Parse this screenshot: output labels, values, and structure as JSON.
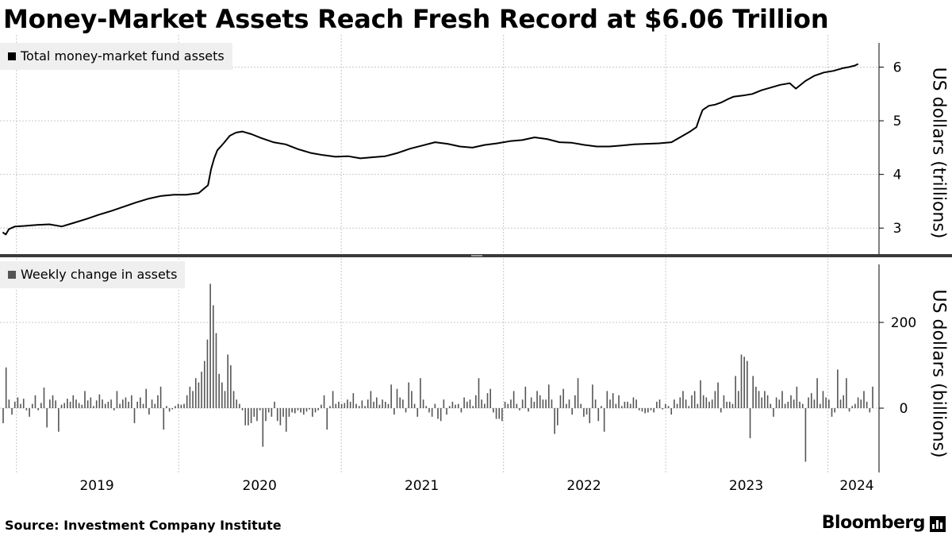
{
  "title": "Money-Market Assets Reach Fresh Record at $6.06 Trillion",
  "source": "Source: Investment Company Institute",
  "brand": "Bloomberg",
  "brand_icon": "bloomberg-chart-icon",
  "colors": {
    "line": "#000000",
    "bar": "#555555",
    "grid": "#c8c8c8",
    "legend_bg": "#efefef"
  },
  "chart_data": [
    {
      "type": "line",
      "legend": "Total money-market fund assets",
      "ylabel": "US dollars (trillions)",
      "yticks": [
        "3",
        "4",
        "5",
        "6"
      ],
      "ylim": [
        2.5,
        6.6
      ],
      "xticks": [
        "2019",
        "2020",
        "2021",
        "2022",
        "2023",
        "2024"
      ],
      "x_unit": "date",
      "grid": true,
      "series": [
        {
          "points": [
            [
              "2018-12-01",
              2.92
            ],
            [
              "2018-12-08",
              2.88
            ],
            [
              "2018-12-15",
              2.98
            ],
            [
              "2018-12-29",
              3.03
            ],
            [
              "2019-01-19",
              3.04
            ],
            [
              "2019-02-16",
              3.06
            ],
            [
              "2019-03-16",
              3.07
            ],
            [
              "2019-04-13",
              3.03
            ],
            [
              "2019-05-11",
              3.1
            ],
            [
              "2019-06-08",
              3.17
            ],
            [
              "2019-07-06",
              3.25
            ],
            [
              "2019-08-03",
              3.32
            ],
            [
              "2019-08-31",
              3.4
            ],
            [
              "2019-09-28",
              3.48
            ],
            [
              "2019-10-26",
              3.55
            ],
            [
              "2019-11-23",
              3.6
            ],
            [
              "2019-12-21",
              3.62
            ],
            [
              "2020-01-18",
              3.62
            ],
            [
              "2020-02-15",
              3.65
            ],
            [
              "2020-03-07",
              3.8
            ],
            [
              "2020-03-14",
              4.1
            ],
            [
              "2020-03-21",
              4.3
            ],
            [
              "2020-03-28",
              4.45
            ],
            [
              "2020-04-11",
              4.58
            ],
            [
              "2020-04-25",
              4.72
            ],
            [
              "2020-05-09",
              4.78
            ],
            [
              "2020-05-23",
              4.8
            ],
            [
              "2020-06-13",
              4.75
            ],
            [
              "2020-07-04",
              4.68
            ],
            [
              "2020-08-01",
              4.6
            ],
            [
              "2020-08-29",
              4.56
            ],
            [
              "2020-09-26",
              4.47
            ],
            [
              "2020-10-24",
              4.4
            ],
            [
              "2020-11-21",
              4.36
            ],
            [
              "2020-12-19",
              4.33
            ],
            [
              "2021-01-16",
              4.34
            ],
            [
              "2021-02-13",
              4.3
            ],
            [
              "2021-03-13",
              4.32
            ],
            [
              "2021-04-10",
              4.34
            ],
            [
              "2021-05-08",
              4.4
            ],
            [
              "2021-06-05",
              4.48
            ],
            [
              "2021-07-03",
              4.54
            ],
            [
              "2021-07-31",
              4.6
            ],
            [
              "2021-08-28",
              4.57
            ],
            [
              "2021-09-25",
              4.52
            ],
            [
              "2021-10-23",
              4.5
            ],
            [
              "2021-11-20",
              4.55
            ],
            [
              "2021-12-18",
              4.58
            ],
            [
              "2022-01-15",
              4.62
            ],
            [
              "2022-02-12",
              4.64
            ],
            [
              "2022-03-12",
              4.69
            ],
            [
              "2022-04-09",
              4.66
            ],
            [
              "2022-05-07",
              4.6
            ],
            [
              "2022-06-04",
              4.59
            ],
            [
              "2022-07-02",
              4.55
            ],
            [
              "2022-07-30",
              4.52
            ],
            [
              "2022-08-27",
              4.52
            ],
            [
              "2022-09-24",
              4.54
            ],
            [
              "2022-10-22",
              4.56
            ],
            [
              "2022-11-19",
              4.57
            ],
            [
              "2022-12-17",
              4.58
            ],
            [
              "2023-01-14",
              4.6
            ],
            [
              "2023-02-04",
              4.7
            ],
            [
              "2023-02-25",
              4.8
            ],
            [
              "2023-03-11",
              4.88
            ],
            [
              "2023-03-18",
              5.05
            ],
            [
              "2023-03-25",
              5.2
            ],
            [
              "2023-04-08",
              5.28
            ],
            [
              "2023-04-22",
              5.3
            ],
            [
              "2023-05-06",
              5.34
            ],
            [
              "2023-05-20",
              5.4
            ],
            [
              "2023-06-03",
              5.45
            ],
            [
              "2023-06-24",
              5.47
            ],
            [
              "2023-07-15",
              5.5
            ],
            [
              "2023-08-05",
              5.57
            ],
            [
              "2023-08-26",
              5.62
            ],
            [
              "2023-09-16",
              5.67
            ],
            [
              "2023-10-07",
              5.7
            ],
            [
              "2023-10-21",
              5.6
            ],
            [
              "2023-11-11",
              5.74
            ],
            [
              "2023-12-02",
              5.84
            ],
            [
              "2023-12-23",
              5.9
            ],
            [
              "2024-01-13",
              5.93
            ],
            [
              "2024-02-03",
              5.98
            ],
            [
              "2024-02-17",
              6.0
            ],
            [
              "2024-03-02",
              6.03
            ],
            [
              "2024-03-09",
              6.06
            ]
          ]
        }
      ]
    },
    {
      "type": "bar",
      "legend": "Weekly change in assets",
      "ylabel": "US dollars (billions)",
      "yticks": [
        "0",
        "200"
      ],
      "ylim": [
        -150,
        350
      ],
      "xticks": [
        "2019",
        "2020",
        "2021",
        "2022",
        "2023",
        "2024"
      ],
      "x_unit": "date",
      "grid": true,
      "series": [
        {
          "values": [
            -35,
            95,
            20,
            -15,
            15,
            25,
            10,
            22,
            -5,
            -20,
            10,
            30,
            -5,
            12,
            48,
            -45,
            20,
            30,
            18,
            -55,
            8,
            12,
            22,
            15,
            30,
            20,
            12,
            8,
            40,
            18,
            25,
            5,
            18,
            32,
            20,
            10,
            15,
            20,
            -5,
            40,
            10,
            20,
            25,
            15,
            30,
            -35,
            15,
            25,
            10,
            45,
            -15,
            20,
            10,
            30,
            50,
            -50,
            5,
            -8,
            -3,
            5,
            10,
            8,
            10,
            30,
            50,
            40,
            70,
            60,
            85,
            110,
            160,
            290,
            240,
            175,
            80,
            60,
            40,
            125,
            100,
            40,
            20,
            10,
            -5,
            -40,
            -40,
            -35,
            -20,
            -30,
            -5,
            -90,
            -30,
            -10,
            -20,
            15,
            -30,
            -40,
            -20,
            -55,
            -20,
            -10,
            -12,
            -5,
            -10,
            -15,
            -8,
            -3,
            -20,
            -10,
            -5,
            8,
            30,
            -50,
            5,
            40,
            10,
            15,
            10,
            12,
            20,
            15,
            35,
            10,
            5,
            18,
            5,
            20,
            40,
            15,
            25,
            8,
            20,
            15,
            10,
            55,
            -15,
            45,
            25,
            20,
            -10,
            60,
            40,
            10,
            -20,
            70,
            20,
            5,
            -10,
            -20,
            10,
            -25,
            -30,
            20,
            -15,
            5,
            15,
            8,
            10,
            -10,
            25,
            15,
            20,
            5,
            30,
            70,
            20,
            10,
            35,
            45,
            -10,
            -25,
            -25,
            -30,
            15,
            10,
            20,
            40,
            10,
            -5,
            20,
            50,
            -8,
            25,
            15,
            40,
            30,
            20,
            20,
            55,
            20,
            -60,
            -40,
            30,
            45,
            10,
            20,
            -15,
            30,
            70,
            10,
            -20,
            -15,
            -35,
            55,
            20,
            -30,
            5,
            -55,
            40,
            20,
            35,
            10,
            30,
            5,
            15,
            15,
            10,
            25,
            20,
            -5,
            -8,
            -12,
            -10,
            -5,
            -10,
            15,
            20,
            -3,
            10,
            5,
            -15,
            20,
            10,
            25,
            40,
            20,
            5,
            30,
            40,
            10,
            65,
            30,
            25,
            15,
            20,
            40,
            60,
            -10,
            30,
            15,
            15,
            10,
            75,
            40,
            125,
            120,
            110,
            -70,
            75,
            50,
            40,
            25,
            40,
            30,
            10,
            -20,
            25,
            20,
            40,
            10,
            15,
            30,
            20,
            50,
            15,
            10,
            -125,
            25,
            35,
            20,
            70,
            10,
            40,
            25,
            20,
            -20,
            -10,
            90,
            20,
            30,
            70,
            -8,
            5,
            10,
            25,
            20,
            40,
            15,
            -10,
            50
          ]
        }
      ]
    }
  ]
}
